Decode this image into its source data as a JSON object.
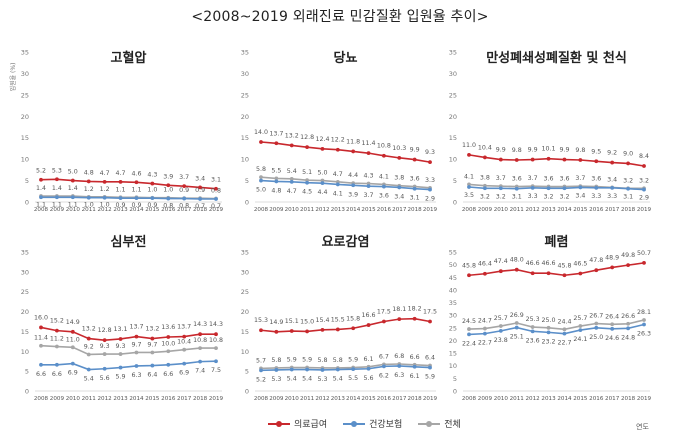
{
  "title": "<2008~2019 외래진료 민감질환 입원율 추이>",
  "x_unit_label": "연도",
  "y_axis_label": "입원율 (%)",
  "colors": {
    "medical_aid": "#c8282d",
    "health_insurance": "#5b8fc9",
    "total": "#a6a6a6"
  },
  "legend": [
    {
      "key": "medical_aid",
      "label": "의료급여"
    },
    {
      "key": "health_insurance",
      "label": "건강보험"
    },
    {
      "key": "total",
      "label": "전체"
    }
  ],
  "chart_data": [
    {
      "type": "line",
      "title": "고혈압",
      "x": [
        "2008",
        "2009",
        "2010",
        "2011",
        "2012",
        "2013",
        "2014",
        "2015",
        "2016",
        "2017",
        "2018",
        "2019"
      ],
      "ylim": [
        0,
        35
      ],
      "yticks": [
        0,
        5,
        10,
        15,
        20,
        25,
        30,
        35
      ],
      "ylabel": "입원율 (%)",
      "series": [
        {
          "name": "의료급여",
          "values": [
            5.2,
            5.3,
            5.0,
            4.8,
            4.7,
            4.7,
            4.6,
            4.3,
            3.9,
            3.7,
            3.4,
            3.1
          ]
        },
        {
          "name": "전체",
          "values": [
            1.4,
            1.4,
            1.4,
            1.2,
            1.2,
            1.1,
            1.1,
            1.0,
            1.0,
            0.9,
            0.9,
            0.8
          ]
        },
        {
          "name": "건강보험",
          "values": [
            1.1,
            1.1,
            1.1,
            1.0,
            1.0,
            0.9,
            0.9,
            0.9,
            0.8,
            0.8,
            0.7,
            0.7
          ]
        }
      ]
    },
    {
      "type": "line",
      "title": "당뇨",
      "x": [
        "2008",
        "2009",
        "2010",
        "2011",
        "2012",
        "2013",
        "2014",
        "2015",
        "2016",
        "2017",
        "2018",
        "2019"
      ],
      "ylim": [
        0,
        35
      ],
      "yticks": [
        0,
        5,
        10,
        15,
        20,
        25,
        30,
        35
      ],
      "series": [
        {
          "name": "의료급여",
          "values": [
            14.0,
            13.7,
            13.2,
            12.8,
            12.4,
            12.2,
            11.8,
            11.4,
            10.8,
            10.3,
            9.9,
            9.3
          ]
        },
        {
          "name": "전체",
          "values": [
            5.8,
            5.5,
            5.4,
            5.1,
            5.0,
            4.7,
            4.4,
            4.3,
            4.1,
            3.8,
            3.6,
            3.3
          ]
        },
        {
          "name": "건강보험",
          "values": [
            5.0,
            4.8,
            4.7,
            4.5,
            4.4,
            4.1,
            3.9,
            3.7,
            3.6,
            3.4,
            3.1,
            2.9
          ]
        }
      ]
    },
    {
      "type": "line",
      "title": "만성폐쇄성폐질환 및 천식",
      "x": [
        "2008",
        "2009",
        "2010",
        "2011",
        "2012",
        "2013",
        "2014",
        "2015",
        "2016",
        "2017",
        "2018",
        "2019"
      ],
      "ylim": [
        0,
        35
      ],
      "yticks": [
        0,
        5,
        10,
        15,
        20,
        25,
        30,
        35
      ],
      "series": [
        {
          "name": "의료급여",
          "values": [
            11.0,
            10.4,
            9.9,
            9.8,
            9.9,
            10.1,
            9.9,
            9.8,
            9.5,
            9.2,
            9.0,
            8.4
          ]
        },
        {
          "name": "전체",
          "values": [
            4.1,
            3.8,
            3.7,
            3.6,
            3.7,
            3.6,
            3.6,
            3.7,
            3.6,
            3.4,
            3.2,
            3.2
          ]
        },
        {
          "name": "건강보험",
          "values": [
            3.5,
            3.2,
            3.2,
            3.1,
            3.3,
            3.2,
            3.2,
            3.4,
            3.3,
            3.3,
            3.1,
            2.9
          ]
        }
      ]
    },
    {
      "type": "line",
      "title": "심부전",
      "x": [
        "2008",
        "2009",
        "2010",
        "2011",
        "2012",
        "2013",
        "2014",
        "2015",
        "2016",
        "2017",
        "2018",
        "2019"
      ],
      "ylim": [
        0,
        35
      ],
      "yticks": [
        0,
        5,
        10,
        15,
        20,
        25,
        30,
        35
      ],
      "series": [
        {
          "name": "의료급여",
          "values": [
            16.0,
            15.2,
            14.9,
            13.2,
            12.8,
            13.1,
            13.7,
            13.2,
            13.6,
            13.7,
            14.3,
            14.3
          ]
        },
        {
          "name": "전체",
          "values": [
            11.4,
            11.2,
            11.0,
            9.2,
            9.3,
            9.3,
            9.7,
            9.7,
            10.0,
            10.4,
            10.8,
            10.8
          ]
        },
        {
          "name": "건강보험",
          "values": [
            6.6,
            6.6,
            6.9,
            5.4,
            5.6,
            5.9,
            6.3,
            6.4,
            6.6,
            6.9,
            7.4,
            7.5
          ]
        }
      ]
    },
    {
      "type": "line",
      "title": "요로감염",
      "x": [
        "2008",
        "2009",
        "2010",
        "2011",
        "2012",
        "2013",
        "2014",
        "2015",
        "2016",
        "2017",
        "2018",
        "2019"
      ],
      "ylim": [
        0,
        35
      ],
      "yticks": [
        0,
        5,
        10,
        15,
        20,
        25,
        30,
        35
      ],
      "series": [
        {
          "name": "의료급여",
          "values": [
            15.3,
            14.9,
            15.1,
            15.0,
            15.4,
            15.5,
            15.8,
            16.6,
            17.5,
            18.1,
            18.2,
            17.5
          ]
        },
        {
          "name": "전체",
          "values": [
            5.7,
            5.8,
            5.9,
            5.9,
            5.8,
            5.8,
            5.9,
            6.1,
            6.7,
            6.8,
            6.6,
            6.4
          ]
        },
        {
          "name": "건강보험",
          "values": [
            5.2,
            5.3,
            5.4,
            5.4,
            5.3,
            5.4,
            5.5,
            5.6,
            6.2,
            6.3,
            6.1,
            5.9
          ]
        }
      ]
    },
    {
      "type": "line",
      "title": "폐렴",
      "x": [
        "2008",
        "2009",
        "2010",
        "2011",
        "2012",
        "2013",
        "2014",
        "2015",
        "2016",
        "2017",
        "2018",
        "2019"
      ],
      "ylim": [
        0,
        55
      ],
      "yticks": [
        0,
        5,
        10,
        15,
        20,
        25,
        30,
        35,
        40,
        45,
        50,
        55
      ],
      "series": [
        {
          "name": "의료급여",
          "values": [
            45.8,
            46.4,
            47.4,
            48.0,
            46.6,
            46.6,
            45.8,
            46.5,
            47.8,
            48.9,
            49.8,
            50.7
          ]
        },
        {
          "name": "전체",
          "values": [
            24.5,
            24.7,
            25.7,
            26.9,
            25.3,
            25.0,
            24.4,
            25.7,
            26.7,
            26.4,
            26.6,
            28.1
          ]
        },
        {
          "name": "건강보험",
          "values": [
            22.4,
            22.7,
            23.8,
            25.1,
            23.6,
            23.2,
            22.7,
            24.1,
            25.0,
            24.6,
            24.8,
            26.3
          ]
        }
      ]
    }
  ]
}
